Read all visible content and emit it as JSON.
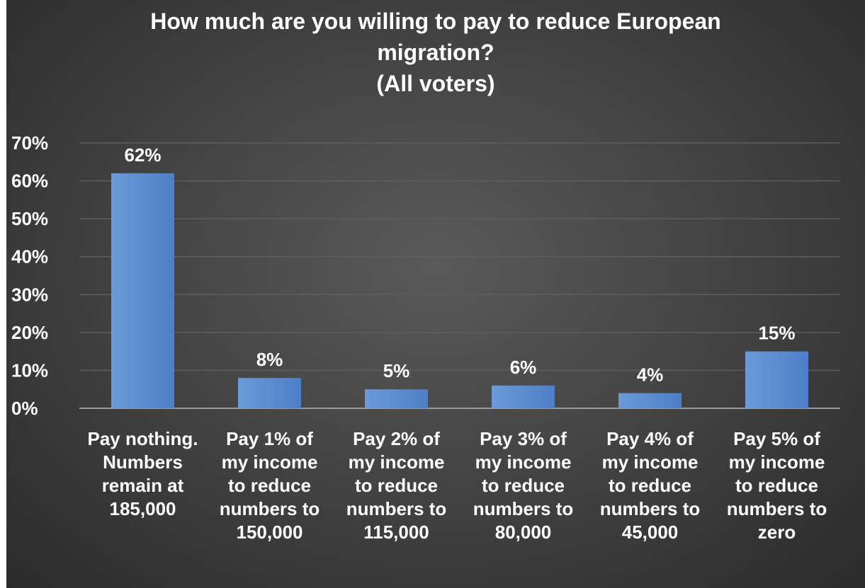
{
  "chart_data": {
    "type": "bar",
    "title_lines": [
      "How much are you willing  to pay to reduce European",
      "migration?",
      "(All  voters)"
    ],
    "categories": [
      [
        "Pay nothing.",
        "Numbers",
        "remain at",
        "185,000"
      ],
      [
        "Pay 1% of",
        "my income",
        "to reduce",
        "numbers to",
        "150,000"
      ],
      [
        "Pay 2% of",
        "my income",
        "to reduce",
        "numbers to",
        "115,000"
      ],
      [
        "Pay 3% of",
        "my income",
        "to reduce",
        "numbers to",
        "80,000"
      ],
      [
        "Pay 4% of",
        "my income",
        "to reduce",
        "numbers to",
        "45,000"
      ],
      [
        "Pay 5% of",
        "my income",
        "to reduce",
        "numbers to",
        "zero"
      ]
    ],
    "values": [
      62,
      8,
      5,
      6,
      4,
      15
    ],
    "data_labels": [
      "62%",
      "8%",
      "5%",
      "6%",
      "4%",
      "15%"
    ],
    "y_ticks": [
      "0%",
      "10%",
      "20%",
      "30%",
      "40%",
      "50%",
      "60%",
      "70%"
    ],
    "ylim": [
      0,
      70
    ],
    "grid": true,
    "legend": "none",
    "colors": {
      "bar": "#4e7fc6",
      "bar_light": "#6b9ad8",
      "text": "#ffffff",
      "grid": "#5e5e5e",
      "axis": "#9a9a9a"
    }
  }
}
